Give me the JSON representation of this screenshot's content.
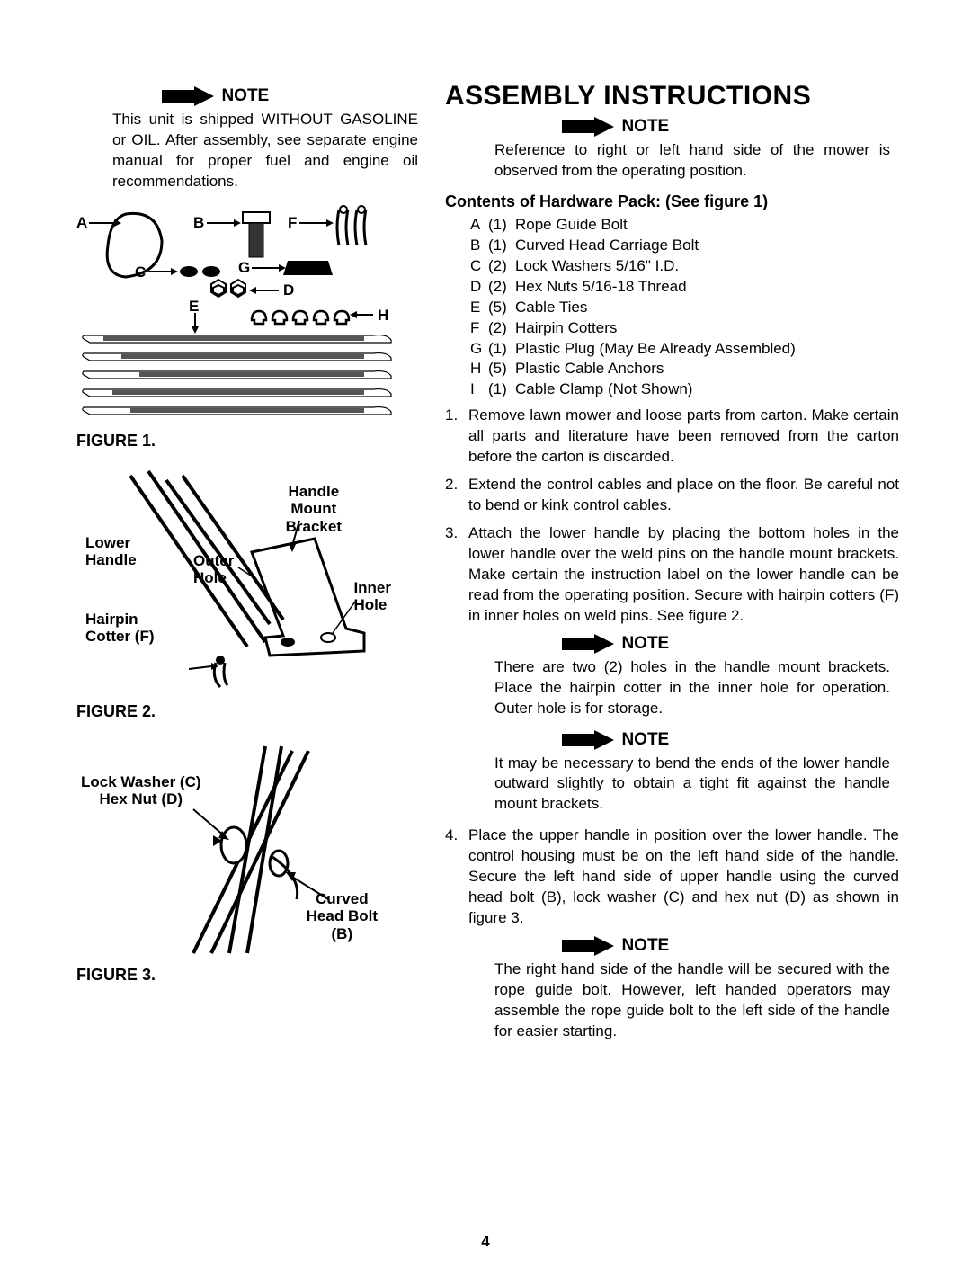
{
  "noteLabel": "NOTE",
  "leftNote": "This unit is shipped WITHOUT GASOLINE or OIL. After assembly, see separate engine manual for proper fuel and engine oil recommendations.",
  "fig1Caption": "FIGURE 1.",
  "fig2Caption": "FIGURE 2.",
  "fig3Caption": "FIGURE 3.",
  "fig2Labels": {
    "handleMount": "Handle Mount Bracket",
    "lowerHandle": "Lower Handle",
    "outerHole": "Outer Hole",
    "innerHole": "Inner Hole",
    "hairpinCotter": "Hairpin Cotter (F)"
  },
  "fig3Labels": {
    "lockWasher": "Lock Washer (C) Hex Nut (D)",
    "curvedBolt": "Curved Head Bolt (B)"
  },
  "mainTitle": "ASSEMBLY INSTRUCTIONS",
  "rightNote1": "Reference to right or left hand side of the mower is observed from the operating position.",
  "contentsHdr": "Contents of Hardware Pack: (See figure 1)",
  "hardware": [
    {
      "l": "A",
      "q": "(1)",
      "d": "Rope Guide Bolt"
    },
    {
      "l": "B",
      "q": "(1)",
      "d": "Curved Head Carriage Bolt"
    },
    {
      "l": "C",
      "q": "(2)",
      "d": "Lock Washers 5/16\" I.D."
    },
    {
      "l": "D",
      "q": "(2)",
      "d": "Hex Nuts 5/16-18 Thread"
    },
    {
      "l": "E",
      "q": "(5)",
      "d": "Cable Ties"
    },
    {
      "l": "F",
      "q": "(2)",
      "d": "Hairpin Cotters"
    },
    {
      "l": "G",
      "q": "(1)",
      "d": "Plastic Plug (May Be Already Assembled)"
    },
    {
      "l": "H",
      "q": "(5)",
      "d": "Plastic Cable Anchors"
    },
    {
      "l": "I",
      "q": "(1)",
      "d": "Cable Clamp (Not Shown)"
    }
  ],
  "steps": [
    {
      "n": "1.",
      "t": "Remove lawn mower and loose parts from carton. Make certain all parts and literature have been removed from the carton before the carton is discarded."
    },
    {
      "n": "2.",
      "t": "Extend the control cables and place on the floor. Be careful not to bend or kink control cables."
    },
    {
      "n": "3.",
      "t": "Attach the lower handle by placing the bottom holes in the lower handle over the weld pins on the handle mount brackets. Make certain the instruction label on the lower handle can be read from the operating position. Secure with hairpin cotters (F) in inner holes on weld pins. See figure 2."
    }
  ],
  "rightNote2": "There are two (2) holes in the handle mount brackets. Place the hairpin cotter in the inner hole for operation. Outer hole is for storage.",
  "rightNote3": "It may be necessary to bend the ends of the lower handle outward slightly to obtain a tight fit against the handle mount brackets.",
  "step4": {
    "n": "4.",
    "t": "Place the upper handle in position over the lower handle. The control housing must be on the left hand side of the handle. Secure the left hand side of upper handle using the curved head bolt (B), lock washer (C) and hex nut (D) as shown in figure 3."
  },
  "rightNote4": "The right hand side of the handle will be secured with the rope guide bolt. However, left handed operators may assemble the rope guide bolt to the left side of the handle for easier starting.",
  "pageNum": "4",
  "colors": {
    "arrow": "#000000",
    "text": "#000000"
  }
}
